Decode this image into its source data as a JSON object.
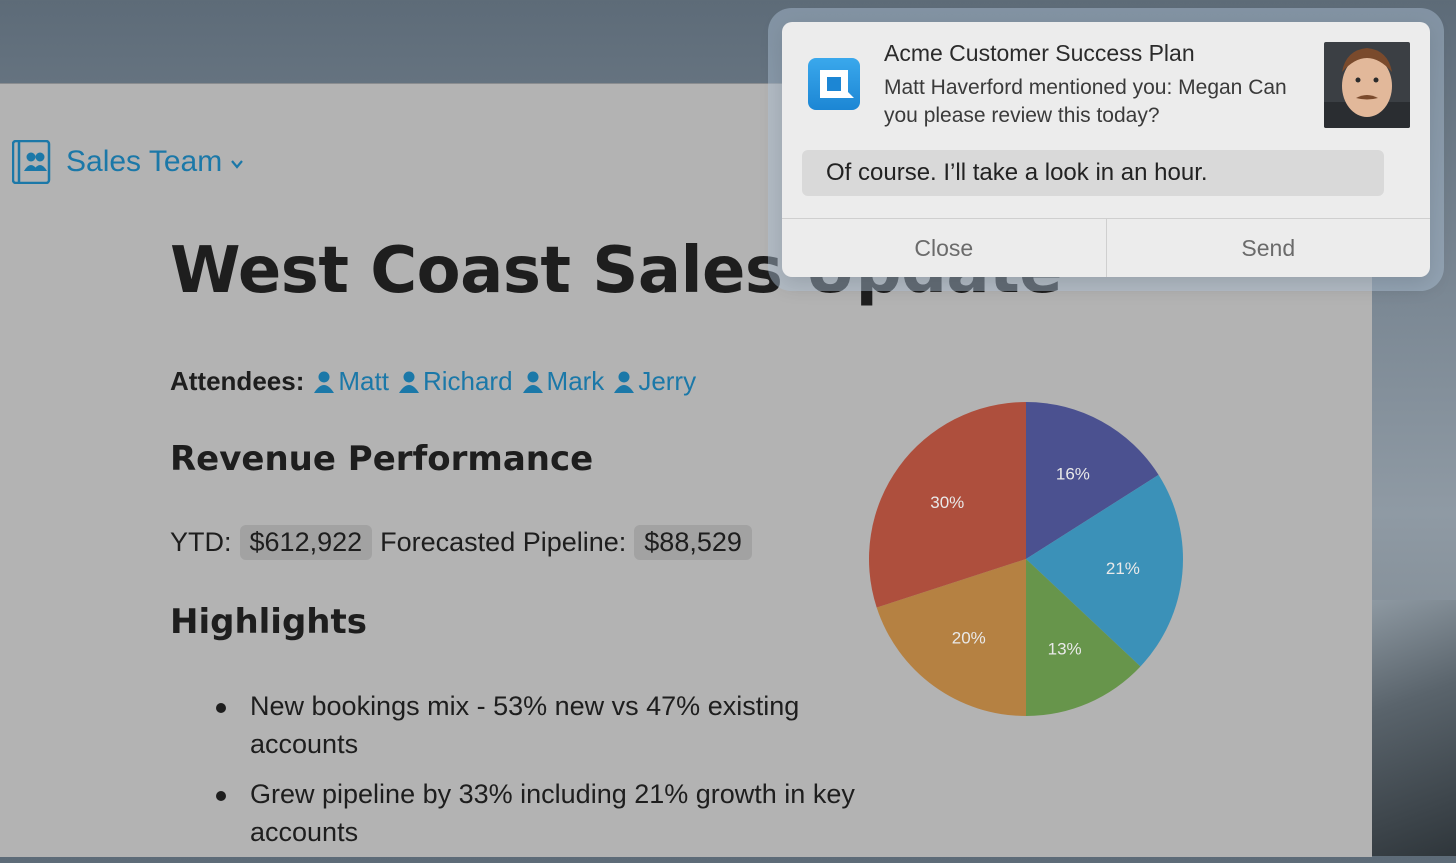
{
  "sidebar": {
    "team_label": "Sales Team"
  },
  "document": {
    "title": "West Coast Sales Update",
    "attendees_label": "Attendees:",
    "attendees": [
      "Matt",
      "Richard",
      "Mark",
      "Jerry"
    ],
    "revenue_heading": "Revenue Performance",
    "ytd_label": "YTD:",
    "ytd_value": "$612,922",
    "pipeline_label": "Forecasted Pipeline:",
    "pipeline_value": "$88,529",
    "highlights_heading": "Highlights",
    "highlights": [
      "New bookings mix - 53% new vs 47% existing accounts",
      "Grew pipeline by 33% including 21% growth in key accounts"
    ]
  },
  "chart_data": {
    "type": "pie",
    "slices": [
      {
        "label": "16%",
        "value": 16,
        "color": "#4b5190"
      },
      {
        "label": "21%",
        "value": 21,
        "color": "#3b91b8"
      },
      {
        "label": "13%",
        "value": 13,
        "color": "#67954b"
      },
      {
        "label": "20%",
        "value": 20,
        "color": "#b58142"
      },
      {
        "label": "30%",
        "value": 30,
        "color": "#ae4f3d"
      }
    ]
  },
  "notification": {
    "title": "Acme Customer Success Plan",
    "message": "Matt Haverford mentioned you: Megan Can you please review this today?",
    "reply_value": "Of course. I’ll take a look in an hour.",
    "close_label": "Close",
    "send_label": "Send",
    "app_icon": "quip-app-icon"
  }
}
